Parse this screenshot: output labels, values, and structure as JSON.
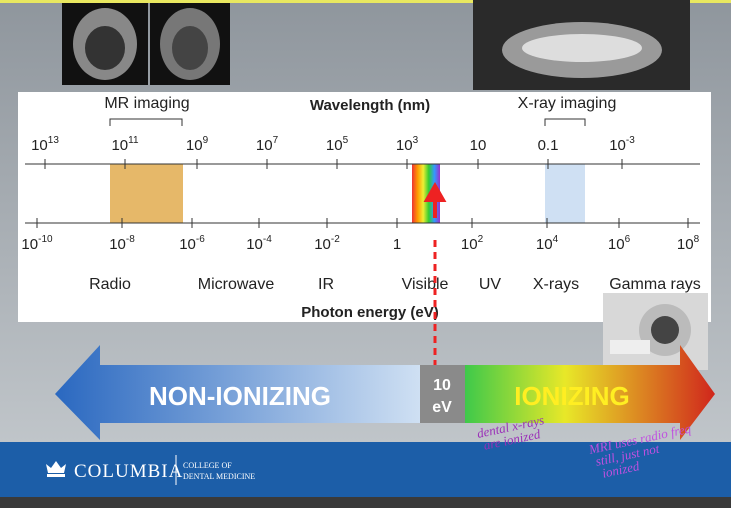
{
  "spectrum": {
    "bracket_labels": [
      "MR imaging",
      "X-ray imaging"
    ],
    "title_top": "Wavelength (nm)",
    "title_bottom": "Photon energy (eV)",
    "wavelength_ticks": [
      {
        "base": "10",
        "exp": "13"
      },
      {
        "base": "10",
        "exp": "11"
      },
      {
        "base": "10",
        "exp": "9"
      },
      {
        "base": "10",
        "exp": "7"
      },
      {
        "base": "10",
        "exp": "5"
      },
      {
        "base": "10",
        "exp": "3"
      },
      {
        "base": "10"
      },
      {
        "base": "0.1"
      },
      {
        "base": "10",
        "exp": "-3"
      }
    ],
    "energy_ticks": [
      {
        "base": "10",
        "exp": "-10"
      },
      {
        "base": "10",
        "exp": "-8"
      },
      {
        "base": "10",
        "exp": "-6"
      },
      {
        "base": "10",
        "exp": "-4"
      },
      {
        "base": "10",
        "exp": "-2"
      },
      {
        "base": "1"
      },
      {
        "base": "10",
        "exp": "2"
      },
      {
        "base": "10",
        "exp": "4"
      },
      {
        "base": "10",
        "exp": "6"
      },
      {
        "base": "10",
        "exp": "8"
      }
    ],
    "regions": [
      "Radio",
      "Microwave",
      "IR",
      "Visible",
      "UV",
      "X-rays",
      "Gamma rays"
    ]
  },
  "arrow": {
    "left": "NON-IONIZING",
    "middle": [
      "10",
      "eV"
    ],
    "right": "IONIZING"
  },
  "annotations": [
    [
      "dental x-rays",
      "are ionized"
    ],
    [
      "MRI uses radio freq",
      "still, just not",
      "ionized"
    ]
  ],
  "footer": {
    "logo": "COLUMBIA",
    "college": [
      "COLLEGE OF",
      "DENTAL MEDICINE"
    ]
  }
}
